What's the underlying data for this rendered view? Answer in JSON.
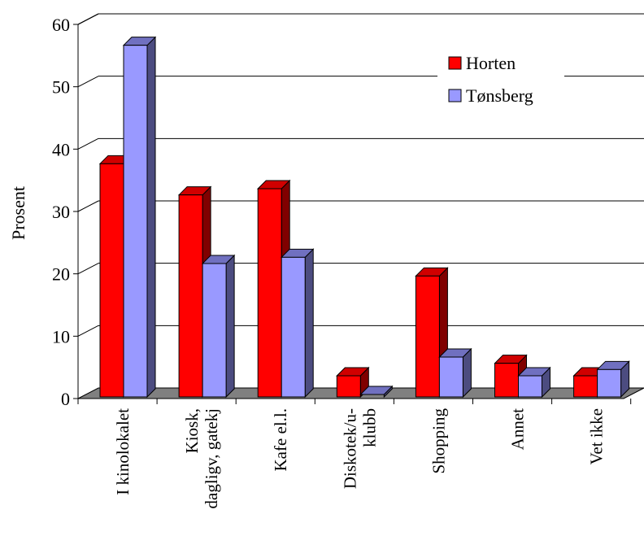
{
  "chart_data": {
    "type": "bar",
    "categories": [
      [
        "I kinolokalet"
      ],
      [
        "Kiosk,",
        "dagligv, gatekj"
      ],
      [
        "Kafe el.l."
      ],
      [
        "Diskotek/u-",
        "klubb"
      ],
      [
        "Shopping"
      ],
      [
        "Annet"
      ],
      [
        "Vet ikke"
      ]
    ],
    "series": [
      {
        "name": "Horten",
        "values": [
          37,
          32,
          33,
          3,
          19,
          5,
          3
        ]
      },
      {
        "name": "Tønsberg",
        "values": [
          56,
          21,
          22,
          0,
          6,
          3,
          4
        ]
      }
    ],
    "ylabel": "Prosent",
    "xlabel": "",
    "ylim": [
      0,
      60
    ],
    "yticks": [
      0,
      10,
      20,
      30,
      40,
      50,
      60
    ],
    "grid": true,
    "three_d": true,
    "legend_position": "top-right",
    "colors": {
      "series": [
        "#ff0000",
        "#9999ff"
      ],
      "series_side": [
        "#800000",
        "#4c4c80"
      ],
      "series_top": [
        "#d00000",
        "#7070c0"
      ],
      "floor": "#808080",
      "gridline": "#000000"
    }
  }
}
